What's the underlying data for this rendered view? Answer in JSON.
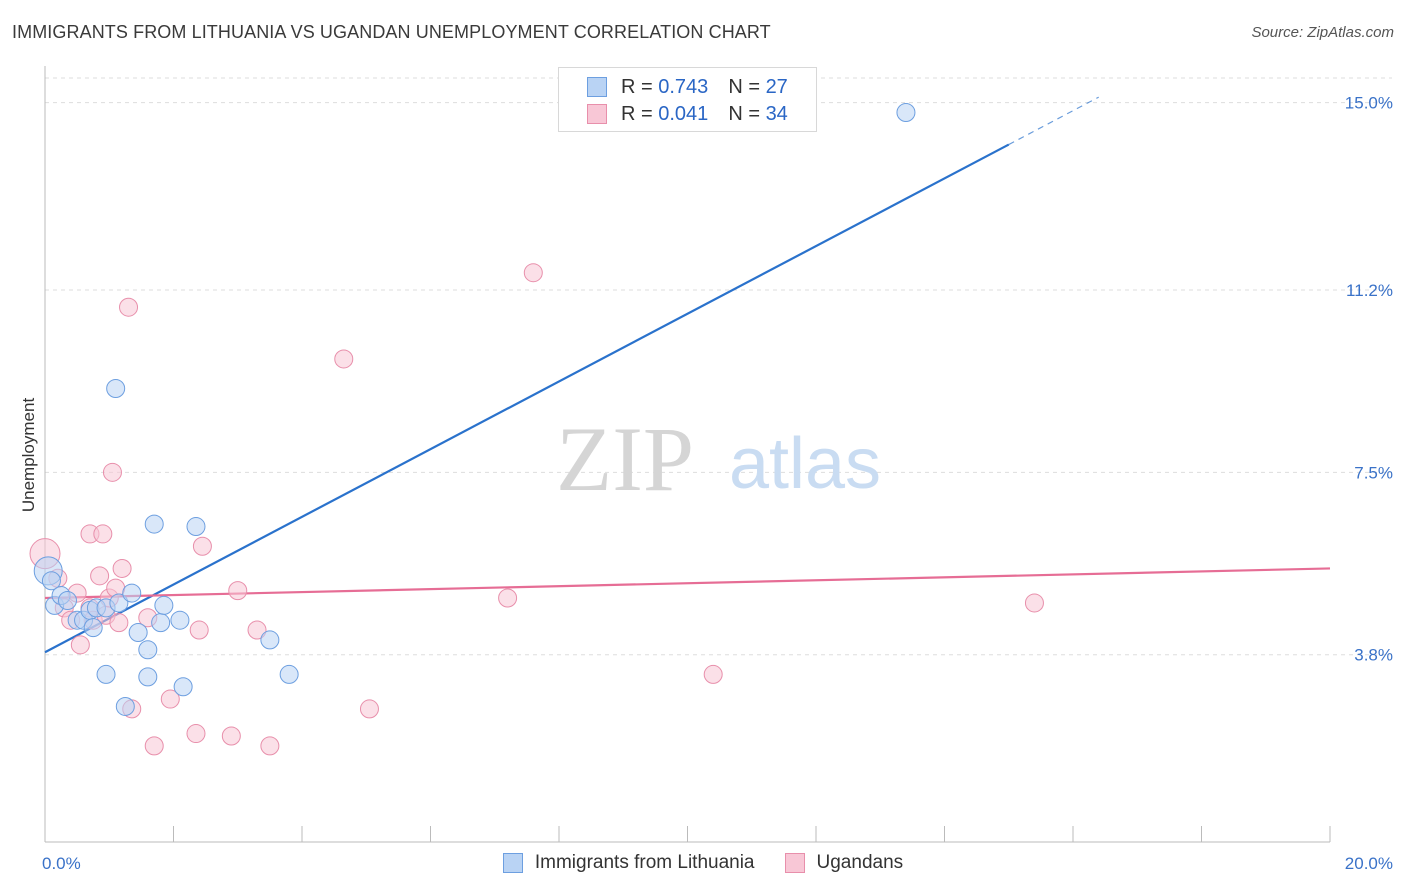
{
  "header": {
    "title": "IMMIGRANTS FROM LITHUANIA VS UGANDAN UNEMPLOYMENT CORRELATION CHART",
    "source": "Source: ZipAtlas.com"
  },
  "watermark": {
    "zip": "ZIP",
    "atlas": "atlas"
  },
  "legend_top": [
    {
      "r_label": "R =",
      "r_value": "0.743",
      "n_label": "N =",
      "n_value": "27"
    },
    {
      "r_label": "R =",
      "r_value": "0.041",
      "n_label": "N =",
      "n_value": "34"
    }
  ],
  "legend_bottom": [
    {
      "label": "Immigrants from Lithuania"
    },
    {
      "label": "Ugandans"
    }
  ],
  "colors": {
    "blue_fill": "#b9d3f4",
    "blue_stroke": "#6d9fe0",
    "blue_line": "#2a72cc",
    "pink_fill": "#f8c7d6",
    "pink_stroke": "#e88fab",
    "pink_line": "#e66d95",
    "tick_label": "#3a72c8",
    "grid": "#dddddd"
  },
  "chart_data": {
    "type": "scatter",
    "title": "IMMIGRANTS FROM LITHUANIA VS UGANDAN UNEMPLOYMENT CORRELATION CHART",
    "xlabel": "",
    "ylabel": "Unemployment",
    "xlim": [
      0,
      20
    ],
    "ylim": [
      0,
      15.5
    ],
    "x_tick_labels": [
      {
        "value": 0,
        "label": "0.0%"
      },
      {
        "value": 20,
        "label": "20.0%"
      }
    ],
    "y_ticks": [
      {
        "value": 3.8,
        "label": "3.8%"
      },
      {
        "value": 7.5,
        "label": "7.5%"
      },
      {
        "value": 11.2,
        "label": "11.2%"
      },
      {
        "value": 15.0,
        "label": "15.0%"
      }
    ],
    "series": [
      {
        "name": "Immigrants from Lithuania",
        "color": "blue",
        "R": 0.743,
        "N": 27,
        "trend": {
          "x0": 0,
          "y0": 3.85,
          "x1": 15.0,
          "y1": 14.15,
          "dash_to_x": 16.4
        },
        "points": [
          {
            "x": 0.05,
            "y": 5.5,
            "r": 14
          },
          {
            "x": 0.1,
            "y": 5.3,
            "r": 9
          },
          {
            "x": 0.15,
            "y": 4.8,
            "r": 9
          },
          {
            "x": 0.25,
            "y": 5.0,
            "r": 9
          },
          {
            "x": 0.35,
            "y": 4.9,
            "r": 9
          },
          {
            "x": 0.5,
            "y": 4.5,
            "r": 9
          },
          {
            "x": 0.6,
            "y": 4.5,
            "r": 9
          },
          {
            "x": 0.7,
            "y": 4.7,
            "r": 9
          },
          {
            "x": 0.75,
            "y": 4.35,
            "r": 9
          },
          {
            "x": 0.8,
            "y": 4.75,
            "r": 9
          },
          {
            "x": 0.95,
            "y": 4.75,
            "r": 9
          },
          {
            "x": 0.95,
            "y": 3.4,
            "r": 9
          },
          {
            "x": 1.1,
            "y": 9.2,
            "r": 9
          },
          {
            "x": 1.15,
            "y": 4.85,
            "r": 9
          },
          {
            "x": 1.25,
            "y": 2.75,
            "r": 9
          },
          {
            "x": 1.35,
            "y": 5.05,
            "r": 9
          },
          {
            "x": 1.45,
            "y": 4.25,
            "r": 9
          },
          {
            "x": 1.6,
            "y": 3.35,
            "r": 9
          },
          {
            "x": 1.6,
            "y": 3.9,
            "r": 9
          },
          {
            "x": 1.7,
            "y": 6.45,
            "r": 9
          },
          {
            "x": 1.8,
            "y": 4.45,
            "r": 9
          },
          {
            "x": 1.85,
            "y": 4.8,
            "r": 9
          },
          {
            "x": 2.1,
            "y": 4.5,
            "r": 9
          },
          {
            "x": 2.15,
            "y": 3.15,
            "r": 9
          },
          {
            "x": 2.35,
            "y": 6.4,
            "r": 9
          },
          {
            "x": 3.5,
            "y": 4.1,
            "r": 9
          },
          {
            "x": 3.8,
            "y": 3.4,
            "r": 9
          },
          {
            "x": 13.4,
            "y": 14.8,
            "r": 9
          }
        ]
      },
      {
        "name": "Ugandans",
        "color": "pink",
        "R": 0.041,
        "N": 34,
        "trend": {
          "x0": 0,
          "y0": 4.95,
          "x1": 20,
          "y1": 5.55
        },
        "points": [
          {
            "x": 0.0,
            "y": 5.85,
            "r": 15
          },
          {
            "x": 0.2,
            "y": 5.35,
            "r": 9
          },
          {
            "x": 0.3,
            "y": 4.75,
            "r": 9
          },
          {
            "x": 0.4,
            "y": 4.5,
            "r": 9
          },
          {
            "x": 0.5,
            "y": 5.05,
            "r": 9
          },
          {
            "x": 0.55,
            "y": 4.0,
            "r": 9
          },
          {
            "x": 0.7,
            "y": 4.75,
            "r": 9
          },
          {
            "x": 0.7,
            "y": 6.25,
            "r": 9
          },
          {
            "x": 0.75,
            "y": 4.5,
            "r": 9
          },
          {
            "x": 0.85,
            "y": 5.4,
            "r": 9
          },
          {
            "x": 0.9,
            "y": 6.25,
            "r": 9
          },
          {
            "x": 0.95,
            "y": 4.6,
            "r": 9
          },
          {
            "x": 1.0,
            "y": 4.95,
            "r": 9
          },
          {
            "x": 1.05,
            "y": 7.5,
            "r": 9
          },
          {
            "x": 1.1,
            "y": 5.15,
            "r": 9
          },
          {
            "x": 1.15,
            "y": 4.45,
            "r": 9
          },
          {
            "x": 1.2,
            "y": 5.55,
            "r": 9
          },
          {
            "x": 1.3,
            "y": 10.85,
            "r": 9
          },
          {
            "x": 1.35,
            "y": 2.7,
            "r": 9
          },
          {
            "x": 1.6,
            "y": 4.55,
            "r": 9
          },
          {
            "x": 1.7,
            "y": 1.95,
            "r": 9
          },
          {
            "x": 1.95,
            "y": 2.9,
            "r": 9
          },
          {
            "x": 2.35,
            "y": 2.2,
            "r": 9
          },
          {
            "x": 2.4,
            "y": 4.3,
            "r": 9
          },
          {
            "x": 2.45,
            "y": 6.0,
            "r": 9
          },
          {
            "x": 2.9,
            "y": 2.15,
            "r": 9
          },
          {
            "x": 3.0,
            "y": 5.1,
            "r": 9
          },
          {
            "x": 3.3,
            "y": 4.3,
            "r": 9
          },
          {
            "x": 3.5,
            "y": 1.95,
            "r": 9
          },
          {
            "x": 4.65,
            "y": 9.8,
            "r": 9
          },
          {
            "x": 5.05,
            "y": 2.7,
            "r": 9
          },
          {
            "x": 7.2,
            "y": 4.95,
            "r": 9
          },
          {
            "x": 7.6,
            "y": 11.55,
            "r": 9
          },
          {
            "x": 10.4,
            "y": 3.4,
            "r": 9
          },
          {
            "x": 15.4,
            "y": 4.85,
            "r": 9
          }
        ]
      }
    ]
  }
}
